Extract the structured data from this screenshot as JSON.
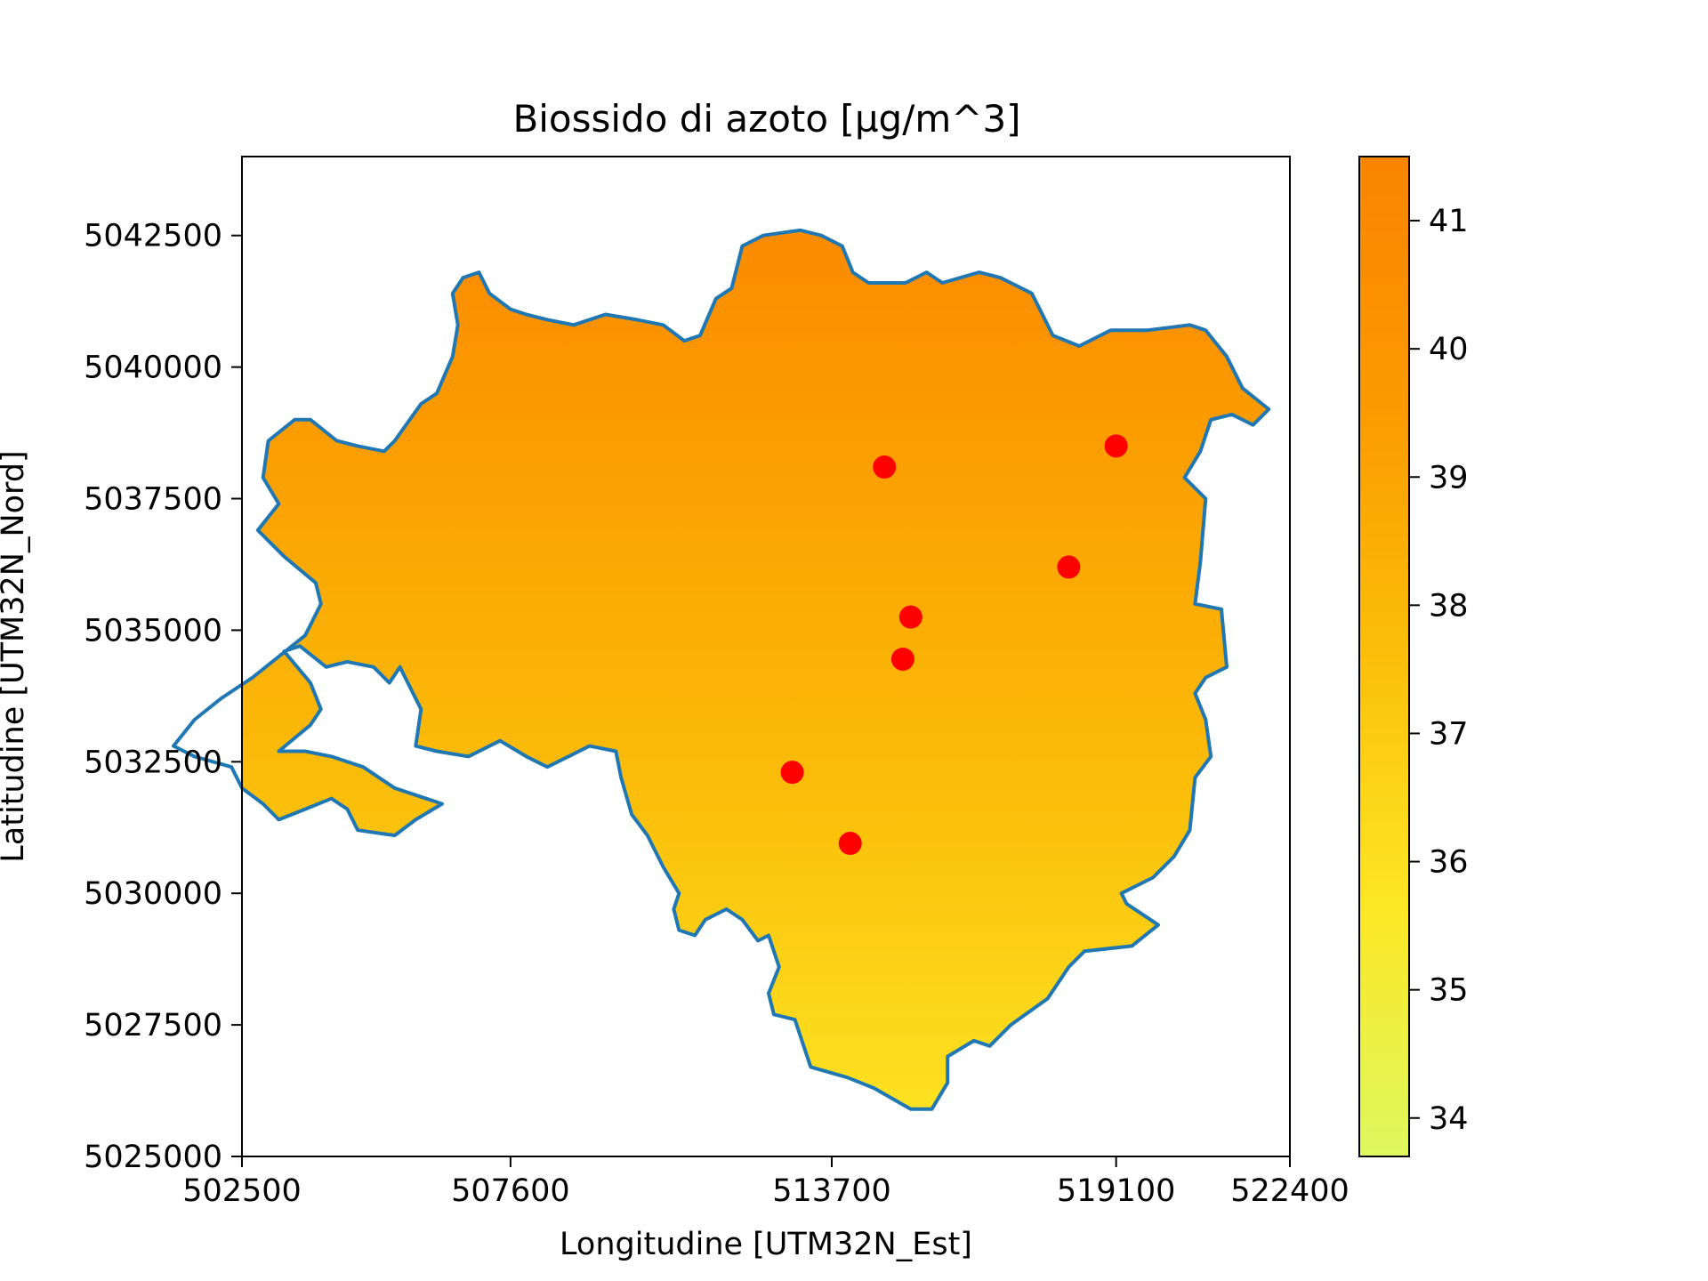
{
  "chart_data": {
    "type": "heatmap",
    "title": "Biossido di azoto [µg/m^3]",
    "xlabel": "Longitudine [UTM32N_Est]",
    "ylabel": "Latitudine [UTM32N_Nord]",
    "xlim": [
      502500,
      522400
    ],
    "ylim": [
      5025000,
      5044000
    ],
    "xticks": [
      502500,
      507600,
      513700,
      519100,
      522400
    ],
    "yticks": [
      5025000,
      5027500,
      5030000,
      5032500,
      5035000,
      5037500,
      5040000,
      5042500
    ],
    "xtick_labels": [
      "502500",
      "507600",
      "513700",
      "519100",
      "522400"
    ],
    "ytick_labels": [
      "5025000",
      "5027500",
      "5030000",
      "5032500",
      "5035000",
      "5037500",
      "5040000",
      "5042500"
    ],
    "colorbar": {
      "range": [
        33.7,
        41.5
      ],
      "ticks": [
        34,
        35,
        36,
        37,
        38,
        39,
        40,
        41
      ],
      "tick_labels": [
        "34",
        "35",
        "36",
        "37",
        "38",
        "39",
        "40",
        "41"
      ],
      "colors": [
        "#ddf85e",
        "#fde725",
        "#fbbf0a",
        "#fb9a00",
        "#fb8400"
      ]
    },
    "boundary_color": "#1f77b4",
    "station_color": "#ff0000",
    "stations": [
      {
        "x": 514700,
        "y": 5038100
      },
      {
        "x": 519100,
        "y": 5038500
      },
      {
        "x": 518200,
        "y": 5036200
      },
      {
        "x": 515200,
        "y": 5035250
      },
      {
        "x": 515050,
        "y": 5034450
      },
      {
        "x": 512950,
        "y": 5032300
      },
      {
        "x": 514050,
        "y": 5030950
      }
    ],
    "boundary": [
      [
        503200,
        5032700
      ],
      [
        503800,
        5033200
      ],
      [
        504000,
        5033500
      ],
      [
        503800,
        5034000
      ],
      [
        503300,
        5034600
      ],
      [
        503600,
        5034700
      ],
      [
        504100,
        5034300
      ],
      [
        504500,
        5034400
      ],
      [
        505000,
        5034300
      ],
      [
        505300,
        5034000
      ],
      [
        505500,
        5034300
      ],
      [
        505700,
        5033900
      ],
      [
        505900,
        5033500
      ],
      [
        505800,
        5032800
      ],
      [
        506200,
        5032700
      ],
      [
        506800,
        5032600
      ],
      [
        507400,
        5032900
      ],
      [
        507900,
        5032600
      ],
      [
        508300,
        5032400
      ],
      [
        508700,
        5032600
      ],
      [
        509100,
        5032800
      ],
      [
        509600,
        5032700
      ],
      [
        509700,
        5032200
      ],
      [
        509900,
        5031500
      ],
      [
        510200,
        5031100
      ],
      [
        510500,
        5030500
      ],
      [
        510800,
        5030000
      ],
      [
        510700,
        5029700
      ],
      [
        510800,
        5029300
      ],
      [
        511100,
        5029200
      ],
      [
        511300,
        5029500
      ],
      [
        511700,
        5029700
      ],
      [
        512000,
        5029500
      ],
      [
        512300,
        5029100
      ],
      [
        512500,
        5029200
      ],
      [
        512700,
        5028600
      ],
      [
        512500,
        5028100
      ],
      [
        512600,
        5027700
      ],
      [
        513000,
        5027600
      ],
      [
        513200,
        5027000
      ],
      [
        513300,
        5026700
      ],
      [
        514000,
        5026500
      ],
      [
        514500,
        5026300
      ],
      [
        515200,
        5025900
      ],
      [
        515600,
        5025900
      ],
      [
        515900,
        5026400
      ],
      [
        515900,
        5026900
      ],
      [
        516400,
        5027200
      ],
      [
        516700,
        5027100
      ],
      [
        517100,
        5027500
      ],
      [
        517800,
        5028000
      ],
      [
        518200,
        5028600
      ],
      [
        518500,
        5028900
      ],
      [
        519400,
        5029000
      ],
      [
        519900,
        5029400
      ],
      [
        519300,
        5029800
      ],
      [
        519200,
        5030000
      ],
      [
        519800,
        5030300
      ],
      [
        520200,
        5030700
      ],
      [
        520500,
        5031200
      ],
      [
        520600,
        5032200
      ],
      [
        520900,
        5032600
      ],
      [
        520800,
        5033300
      ],
      [
        520600,
        5033800
      ],
      [
        520800,
        5034100
      ],
      [
        521200,
        5034300
      ],
      [
        521100,
        5035400
      ],
      [
        520600,
        5035500
      ],
      [
        520700,
        5036300
      ],
      [
        520800,
        5037500
      ],
      [
        520400,
        5037900
      ],
      [
        520700,
        5038400
      ],
      [
        520900,
        5039000
      ],
      [
        521300,
        5039100
      ],
      [
        521700,
        5038900
      ],
      [
        522000,
        5039200
      ],
      [
        521500,
        5039600
      ],
      [
        521200,
        5040200
      ],
      [
        520800,
        5040700
      ],
      [
        520500,
        5040800
      ],
      [
        519700,
        5040700
      ],
      [
        519000,
        5040700
      ],
      [
        518400,
        5040400
      ],
      [
        517900,
        5040600
      ],
      [
        517500,
        5041400
      ],
      [
        516900,
        5041700
      ],
      [
        516500,
        5041800
      ],
      [
        515800,
        5041600
      ],
      [
        515500,
        5041800
      ],
      [
        515100,
        5041600
      ],
      [
        514800,
        5041600
      ],
      [
        514400,
        5041600
      ],
      [
        514100,
        5041800
      ],
      [
        513900,
        5042300
      ],
      [
        513500,
        5042500
      ],
      [
        513100,
        5042600
      ],
      [
        512400,
        5042500
      ],
      [
        512000,
        5042300
      ],
      [
        511800,
        5041500
      ],
      [
        511500,
        5041300
      ],
      [
        511200,
        5040600
      ],
      [
        510900,
        5040500
      ],
      [
        510500,
        5040800
      ],
      [
        510000,
        5040900
      ],
      [
        509400,
        5041000
      ],
      [
        508800,
        5040800
      ],
      [
        508300,
        5040900
      ],
      [
        507900,
        5041000
      ],
      [
        507600,
        5041100
      ],
      [
        507200,
        5041400
      ],
      [
        507000,
        5041800
      ],
      [
        506700,
        5041700
      ],
      [
        506500,
        5041400
      ],
      [
        506600,
        5040800
      ],
      [
        506500,
        5040200
      ],
      [
        506200,
        5039500
      ],
      [
        505900,
        5039300
      ],
      [
        505400,
        5038600
      ],
      [
        505200,
        5038400
      ],
      [
        504700,
        5038500
      ],
      [
        504300,
        5038600
      ],
      [
        503800,
        5039000
      ],
      [
        503500,
        5039000
      ],
      [
        503000,
        5038600
      ],
      [
        502900,
        5037900
      ],
      [
        503200,
        5037400
      ],
      [
        502800,
        5036900
      ],
      [
        503300,
        5036400
      ],
      [
        503900,
        5035900
      ],
      [
        504000,
        5035500
      ],
      [
        503800,
        5035100
      ],
      [
        503700,
        5034900
      ],
      [
        503200,
        5034500
      ],
      [
        502700,
        5034100
      ],
      [
        502100,
        5033700
      ],
      [
        501600,
        5033300
      ],
      [
        501200,
        5032800
      ],
      [
        501600,
        5032600
      ],
      [
        502300,
        5032400
      ],
      [
        502500,
        5032000
      ],
      [
        502900,
        5031700
      ],
      [
        503200,
        5031400
      ],
      [
        503700,
        5031600
      ],
      [
        504200,
        5031800
      ],
      [
        504500,
        5031600
      ],
      [
        504700,
        5031200
      ],
      [
        505400,
        5031100
      ],
      [
        505800,
        5031400
      ],
      [
        506300,
        5031700
      ],
      [
        506000,
        5031800
      ],
      [
        505400,
        5032000
      ],
      [
        504800,
        5032400
      ],
      [
        504200,
        5032600
      ],
      [
        503700,
        5032700
      ]
    ]
  }
}
